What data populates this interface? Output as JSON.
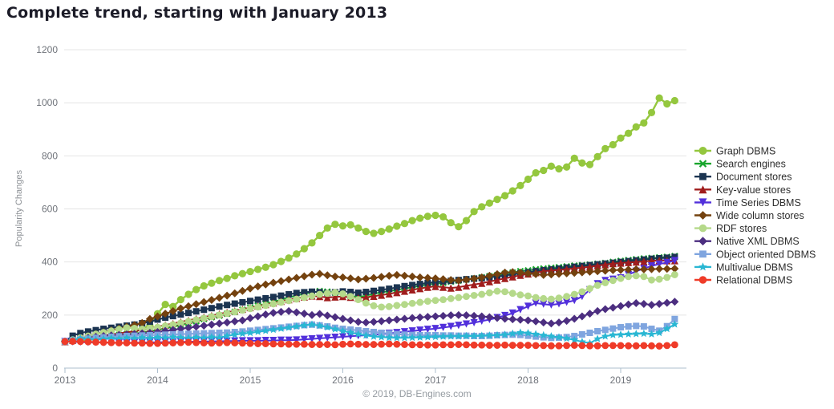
{
  "title": "Complete trend, starting with January 2013",
  "footer": "© 2019, DB-Engines.com",
  "chart_data": {
    "type": "line",
    "title": "Complete trend, starting with January 2013",
    "xlabel": "",
    "ylabel": "Popularity Changes",
    "ylim": [
      0,
      1200
    ],
    "yticks": [
      0,
      200,
      400,
      600,
      800,
      1000,
      1200
    ],
    "xtick_labels": [
      "2013",
      "2014",
      "2015",
      "2016",
      "2017",
      "2018",
      "2019"
    ],
    "x_start": "2013-01",
    "x_end": "2019-08",
    "x_interval": "monthly",
    "grid": true,
    "legend_position": "right",
    "series": [
      {
        "name": "Graph DBMS",
        "color": "#94C73E",
        "marker": "circle",
        "marker_size": 4.6,
        "line_width": 2.4,
        "values": [
          100,
          102,
          105,
          108,
          112,
          116,
          120,
          125,
          130,
          138,
          148,
          160,
          205,
          240,
          232,
          258,
          278,
          296,
          310,
          320,
          330,
          338,
          348,
          356,
          364,
          372,
          380,
          390,
          402,
          415,
          430,
          450,
          472,
          500,
          528,
          542,
          536,
          540,
          528,
          515,
          508,
          515,
          524,
          535,
          545,
          556,
          565,
          572,
          576,
          570,
          548,
          533,
          556,
          590,
          608,
          622,
          636,
          650,
          668,
          688,
          712,
          736,
          745,
          761,
          751,
          758,
          791,
          773,
          767,
          797,
          827,
          842,
          867,
          885,
          909,
          924,
          963,
          1018,
          996,
          1008
        ]
      },
      {
        "name": "Search engines",
        "color": "#18A62D",
        "marker": "x",
        "marker_size": 3.6,
        "line_width": 2,
        "values": [
          100,
          104,
          108,
          112,
          116,
          118,
          121,
          124,
          127,
          130,
          134,
          139,
          144,
          150,
          157,
          163,
          170,
          177,
          185,
          192,
          198,
          205,
          212,
          220,
          228,
          235,
          242,
          250,
          258,
          266,
          274,
          280,
          286,
          290,
          288,
          284,
          278,
          272,
          268,
          273,
          280,
          286,
          290,
          295,
          300,
          305,
          310,
          315,
          318,
          322,
          326,
          330,
          334,
          338,
          342,
          346,
          350,
          355,
          360,
          365,
          368,
          372,
          375,
          378,
          380,
          383,
          386,
          388,
          390,
          393,
          396,
          400,
          404,
          407,
          410,
          413,
          415,
          417,
          419,
          422
        ]
      },
      {
        "name": "Document stores",
        "color": "#1B3451",
        "marker": "square",
        "marker_size": 4,
        "line_width": 2,
        "values": [
          100,
          122,
          132,
          138,
          143,
          148,
          152,
          156,
          160,
          164,
          169,
          175,
          183,
          190,
          196,
          202,
          208,
          214,
          220,
          226,
          232,
          238,
          243,
          248,
          253,
          258,
          263,
          268,
          273,
          278,
          283,
          286,
          288,
          286,
          283,
          286,
          289,
          287,
          284,
          287,
          291,
          295,
          299,
          304,
          309,
          313,
          317,
          321,
          324,
          327,
          329,
          332,
          335,
          337,
          339,
          342,
          345,
          349,
          353,
          357,
          361,
          365,
          369,
          372,
          375,
          379,
          382,
          385,
          388,
          391,
          394,
          397,
          400,
          403,
          406,
          409,
          412,
          414,
          416,
          419
        ]
      },
      {
        "name": "Key-value stores",
        "color": "#A01D1D",
        "marker": "triangle-up",
        "marker_size": 4.6,
        "line_width": 2,
        "values": [
          100,
          105,
          110,
          115,
          119,
          123,
          127,
          131,
          135,
          139,
          144,
          150,
          156,
          162,
          168,
          174,
          180,
          186,
          192,
          198,
          204,
          210,
          216,
          222,
          228,
          234,
          240,
          246,
          252,
          258,
          263,
          268,
          272,
          270,
          266,
          268,
          270,
          267,
          264,
          267,
          271,
          275,
          280,
          285,
          290,
          295,
          300,
          305,
          308,
          305,
          302,
          305,
          310,
          315,
          320,
          326,
          332,
          338,
          344,
          350,
          355,
          360,
          365,
          368,
          370,
          373,
          376,
          379,
          382,
          386,
          390,
          394,
          396,
          398,
          400,
          402,
          404,
          406,
          405,
          405
        ]
      },
      {
        "name": "Time Series DBMS",
        "color": "#5230DB",
        "marker": "triangle-down",
        "marker_size": 4.6,
        "line_width": 2,
        "values": [
          100,
          99,
          98,
          97,
          97,
          96,
          96,
          95,
          95,
          96,
          96,
          97,
          97,
          98,
          98,
          99,
          99,
          100,
          100,
          101,
          101,
          102,
          102,
          103,
          103,
          103,
          104,
          104,
          105,
          105,
          106,
          108,
          110,
          112,
          114,
          116,
          118,
          120,
          122,
          124,
          126,
          128,
          131,
          134,
          137,
          140,
          143,
          146,
          149,
          153,
          157,
          161,
          166,
          171,
          177,
          183,
          190,
          198,
          207,
          220,
          233,
          245,
          241,
          238,
          242,
          248,
          255,
          270,
          295,
          318,
          330,
          335,
          340,
          352,
          365,
          375,
          385,
          392,
          398,
          405
        ]
      },
      {
        "name": "Wide column stores",
        "color": "#74420F",
        "marker": "diamond",
        "marker_size": 5,
        "line_width": 2,
        "values": [
          100,
          106,
          113,
          120,
          128,
          135,
          142,
          149,
          156,
          162,
          170,
          185,
          195,
          205,
          215,
          225,
          233,
          241,
          249,
          257,
          265,
          273,
          282,
          291,
          300,
          308,
          315,
          322,
          328,
          334,
          340,
          346,
          352,
          355,
          350,
          345,
          342,
          338,
          334,
          337,
          340,
          344,
          348,
          351,
          348,
          345,
          342,
          340,
          338,
          335,
          332,
          330,
          333,
          337,
          342,
          348,
          354,
          360,
          362,
          360,
          357,
          354,
          351,
          353,
          355,
          357,
          359,
          361,
          363,
          365,
          367,
          369,
          370,
          371,
          372,
          372,
          373,
          374,
          374,
          375
        ]
      },
      {
        "name": "RDF stores",
        "color": "#B5D98A",
        "marker": "circle",
        "marker_size": 4.4,
        "line_width": 2,
        "values": [
          100,
          107,
          114,
          121,
          128,
          134,
          140,
          146,
          152,
          150,
          147,
          150,
          154,
          159,
          164,
          170,
          176,
          182,
          188,
          194,
          200,
          206,
          212,
          218,
          224,
          230,
          236,
          242,
          248,
          254,
          260,
          266,
          272,
          278,
          282,
          285,
          280,
          270,
          258,
          245,
          235,
          230,
          232,
          236,
          240,
          244,
          248,
          252,
          255,
          258,
          262,
          266,
          270,
          274,
          278,
          284,
          290,
          288,
          282,
          276,
          272,
          266,
          262,
          260,
          264,
          270,
          278,
          288,
          300,
          312,
          322,
          330,
          338,
          345,
          348,
          345,
          332,
          335,
          342,
          352
        ]
      },
      {
        "name": "Native XML DBMS",
        "color": "#4C2E80",
        "marker": "diamond",
        "marker_size": 5,
        "line_width": 2,
        "values": [
          100,
          104,
          109,
          114,
          118,
          121,
          123,
          125,
          127,
          129,
          131,
          133,
          136,
          140,
          144,
          148,
          152,
          156,
          160,
          164,
          168,
          172,
          176,
          180,
          188,
          195,
          202,
          208,
          212,
          215,
          210,
          205,
          200,
          204,
          198,
          192,
          186,
          180,
          174,
          172,
          174,
          177,
          180,
          183,
          186,
          189,
          191,
          193,
          195,
          197,
          199,
          200,
          199,
          197,
          195,
          192,
          189,
          186,
          184,
          182,
          180,
          176,
          172,
          168,
          172,
          178,
          186,
          195,
          205,
          215,
          222,
          228,
          234,
          240,
          245,
          242,
          238,
          242,
          246,
          250
        ]
      },
      {
        "name": "Object oriented DBMS",
        "color": "#7FA5DF",
        "marker": "square",
        "marker_size": 4,
        "line_width": 2,
        "values": [
          100,
          104,
          108,
          111,
          114,
          116,
          118,
          120,
          121,
          122,
          123,
          124,
          125,
          126,
          127,
          128,
          129,
          130,
          131,
          132,
          133,
          134,
          136,
          138,
          141,
          144,
          147,
          150,
          153,
          156,
          159,
          162,
          164,
          161,
          157,
          152,
          148,
          145,
          142,
          139,
          136,
          133,
          130,
          128,
          126,
          125,
          124,
          124,
          124,
          123,
          123,
          122,
          122,
          121,
          121,
          122,
          124,
          125,
          126,
          125,
          122,
          119,
          116,
          114,
          115,
          117,
          121,
          127,
          133,
          139,
          144,
          149,
          154,
          157,
          159,
          157,
          148,
          141,
          158,
          185
        ]
      },
      {
        "name": "Multivalue DBMS",
        "color": "#29B7D3",
        "marker": "star",
        "marker_size": 5.2,
        "line_width": 2,
        "values": [
          100,
          106,
          112,
          109,
          107,
          110,
          113,
          111,
          114,
          112,
          115,
          113,
          116,
          114,
          117,
          115,
          113,
          116,
          114,
          117,
          115,
          121,
          126,
          130,
          133,
          137,
          141,
          145,
          149,
          153,
          157,
          161,
          164,
          160,
          154,
          147,
          140,
          134,
          128,
          123,
          119,
          117,
          115,
          114,
          114,
          115,
          116,
          117,
          118,
          119,
          120,
          120,
          121,
          121,
          122,
          123,
          124,
          126,
          130,
          134,
          132,
          128,
          124,
          120,
          116,
          112,
          106,
          99,
          94,
          110,
          120,
          125,
          126,
          128,
          129,
          130,
          128,
          133,
          148,
          165
        ]
      },
      {
        "name": "Relational DBMS",
        "color": "#EF3B28",
        "marker": "circle",
        "marker_size": 4.4,
        "line_width": 2,
        "values": [
          100,
          101,
          100,
          99,
          98,
          97,
          96,
          95,
          95,
          94,
          94,
          93,
          93,
          94,
          95,
          96,
          97,
          96,
          95,
          94,
          95,
          96,
          95,
          94,
          93,
          92,
          92,
          91,
          91,
          90,
          90,
          90,
          89,
          89,
          89,
          88,
          90,
          91,
          90,
          89,
          89,
          90,
          91,
          90,
          89,
          88,
          88,
          87,
          87,
          88,
          88,
          89,
          88,
          87,
          87,
          86,
          86,
          87,
          86,
          86,
          86,
          85,
          85,
          84,
          84,
          85,
          86,
          85,
          84,
          84,
          85,
          85,
          85,
          84,
          84,
          85,
          84,
          83,
          85,
          88
        ]
      }
    ]
  }
}
